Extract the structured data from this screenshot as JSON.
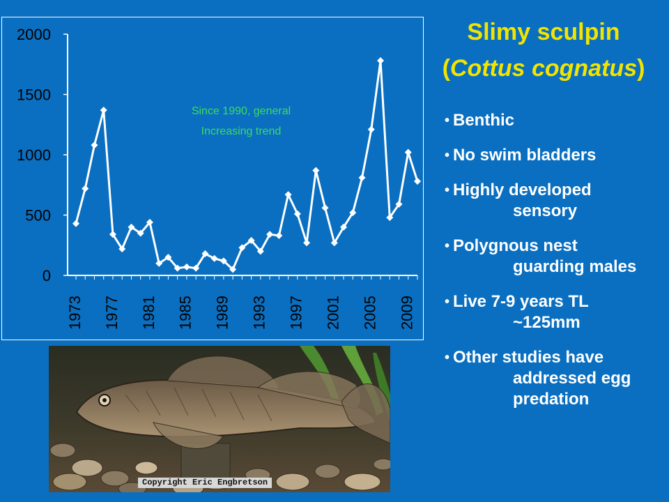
{
  "title": {
    "line1": "Slimy sculpin",
    "sci_name": "Cottus cognatus",
    "open_paren": "(",
    "close_paren": ")"
  },
  "bullets": [
    {
      "text": "Benthic",
      "cont": ""
    },
    {
      "text": "No swim bladders",
      "cont": ""
    },
    {
      "text": "Highly developed",
      "cont": "sensory"
    },
    {
      "text": "Polygnous nest",
      "cont": "guarding males"
    },
    {
      "text": "Live 7-9 years TL",
      "cont": "~125mm"
    },
    {
      "text": "Other studies have",
      "cont": "addressed egg predation"
    }
  ],
  "photo": {
    "copyright": "Copyright Eric Engbretson"
  },
  "colors": {
    "background": "#0a6fc0",
    "title": "#f2e400",
    "annotation": "#3ddc5a",
    "series": "#ffffff"
  },
  "chart_data": {
    "type": "line",
    "title": "",
    "xlabel": "",
    "ylabel": "",
    "ylim": [
      0,
      2000
    ],
    "yticks": [
      0,
      500,
      1000,
      1500,
      2000
    ],
    "xtick_labels": [
      "1973",
      "1977",
      "1981",
      "1985",
      "1989",
      "1993",
      "1997",
      "2001",
      "2005",
      "2009"
    ],
    "annotation": "Since 1990, general Increasing trend",
    "annotation_lines": [
      "Since 1990, general",
      "Increasing trend"
    ],
    "series": [
      {
        "name": "",
        "x": [
          1973,
          1974,
          1975,
          1976,
          1977,
          1978,
          1979,
          1980,
          1981,
          1982,
          1983,
          1984,
          1985,
          1986,
          1987,
          1988,
          1989,
          1990,
          1991,
          1992,
          1993,
          1994,
          1995,
          1996,
          1997,
          1998,
          1999,
          2000,
          2001,
          2002,
          2003,
          2004,
          2005,
          2006,
          2007,
          2008,
          2009,
          2010
        ],
        "values": [
          430,
          720,
          1080,
          1370,
          340,
          220,
          400,
          350,
          440,
          100,
          150,
          60,
          70,
          60,
          180,
          140,
          120,
          50,
          230,
          290,
          200,
          340,
          330,
          670,
          510,
          270,
          870,
          560,
          270,
          400,
          520,
          810,
          1210,
          1780,
          480,
          590,
          1020,
          780
        ]
      }
    ],
    "grid": false,
    "legend": "none"
  }
}
